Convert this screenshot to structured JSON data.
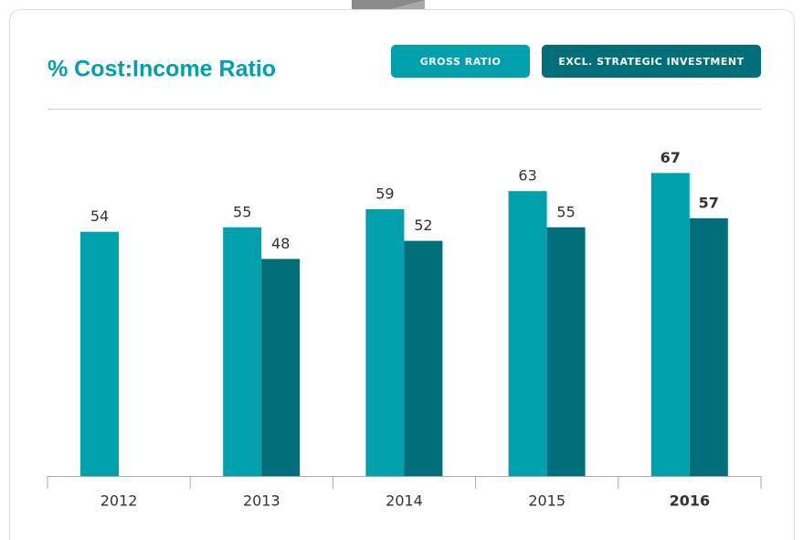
{
  "chart_data": {
    "type": "bar",
    "title": "% Cost:Income Ratio",
    "categories": [
      "2012",
      "2013",
      "2014",
      "2015",
      "2016"
    ],
    "series": [
      {
        "name": "GROSS RATIO",
        "color": "#00a0ad",
        "values": [
          54,
          55,
          59,
          63,
          67
        ]
      },
      {
        "name": "EXCL. STRATEGIC INVESTMENT",
        "color": "#006e78",
        "values": [
          null,
          48,
          52,
          55,
          57
        ]
      }
    ]
  }
}
